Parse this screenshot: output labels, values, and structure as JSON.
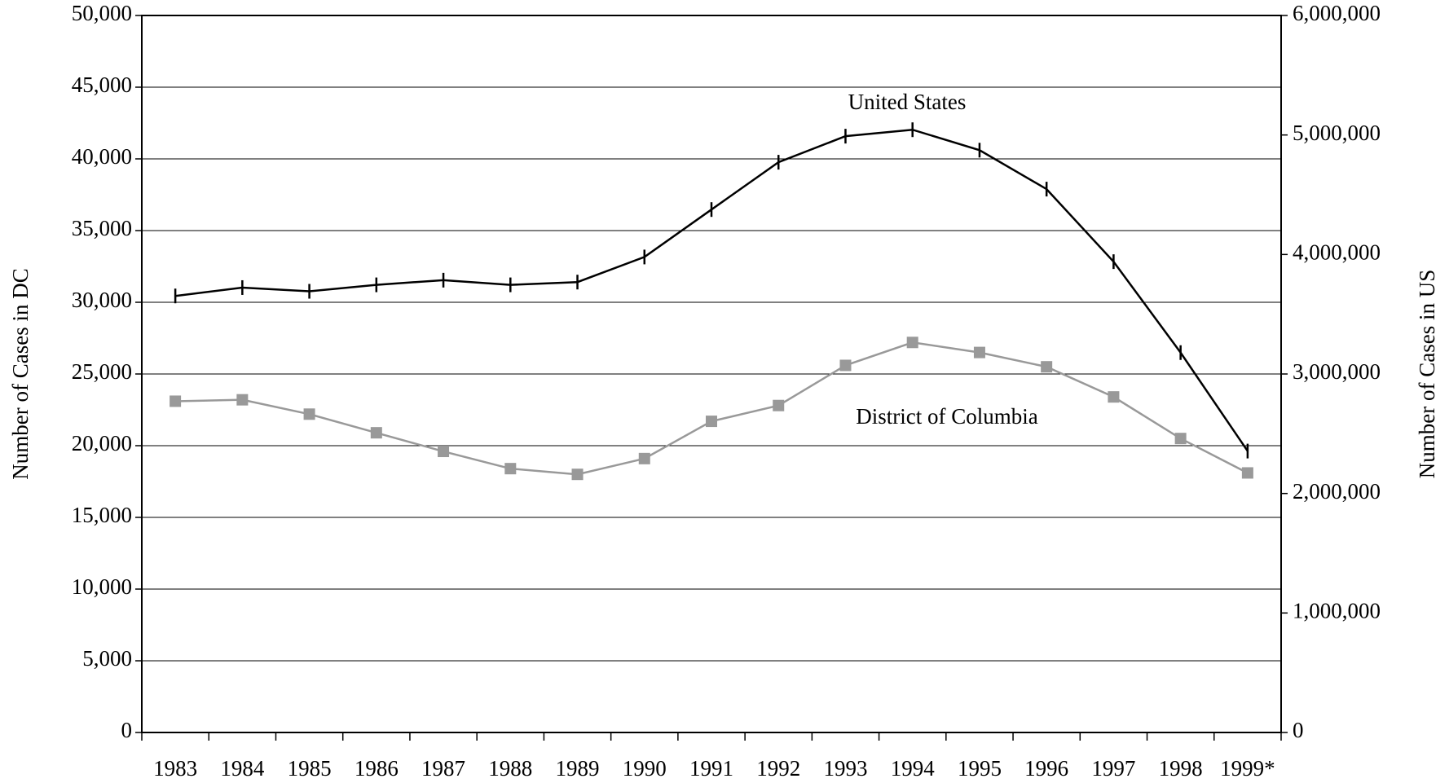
{
  "chart_data": {
    "type": "line",
    "categories": [
      "1983",
      "1984",
      "1985",
      "1986",
      "1987",
      "1988",
      "1989",
      "1990",
      "1991",
      "1992",
      "1993",
      "1994",
      "1995",
      "1996",
      "1997",
      "1998",
      "1999*"
    ],
    "ylabel": "Number of Cases in DC",
    "y2label": "Number of Cases in US",
    "ylim": [
      0,
      50000
    ],
    "yticks": [
      0,
      {
        "value": 5000,
        "label": "5,000"
      },
      {
        "value": 10000,
        "label": "10,000"
      },
      {
        "value": 15000,
        "label": "15,000"
      },
      {
        "value": 20000,
        "label": "20,000"
      },
      {
        "value": 25000,
        "label": "25,000"
      },
      {
        "value": 30000,
        "label": "30,000"
      },
      {
        "value": 35000,
        "label": "35,000"
      },
      {
        "value": 40000,
        "label": "40,000"
      },
      {
        "value": 45000,
        "label": "45,000"
      },
      {
        "value": 50000,
        "label": "50,000"
      }
    ],
    "y2lim": [
      0,
      6000000
    ],
    "y2ticks": [
      0,
      {
        "value": 1000000,
        "label": "1,000,000"
      },
      {
        "value": 2000000,
        "label": "2,000,000"
      },
      {
        "value": 3000000,
        "label": "3,000,000"
      },
      {
        "value": 4000000,
        "label": "4,000,000"
      },
      {
        "value": 5000000,
        "label": "5,000,000"
      },
      {
        "value": 6000000,
        "label": "6,000,000"
      }
    ],
    "grid": true,
    "series": [
      {
        "name": "United States",
        "color": "#000000",
        "axis": "y2",
        "marker": "tick",
        "values": [
          3653000,
          3723000,
          3692000,
          3746000,
          3785000,
          3746000,
          3769000,
          3979000,
          4376000,
          4772000,
          4990000,
          5044000,
          4873000,
          4547000,
          3940000,
          3179000,
          2355000
        ]
      },
      {
        "name": "District of Columbia",
        "color": "#999999",
        "marker": "square",
        "values": [
          23100,
          23200,
          22200,
          20900,
          19600,
          18400,
          18000,
          19100,
          21700,
          22800,
          25600,
          27200,
          26500,
          25500,
          23400,
          20500,
          18100
        ]
      }
    ]
  }
}
